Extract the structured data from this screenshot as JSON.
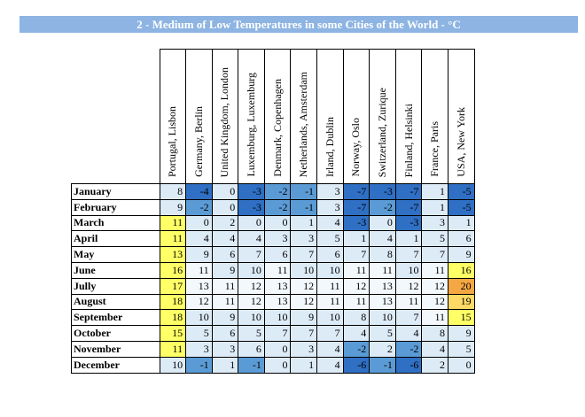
{
  "title": "2 - Medium of Low Temperatures in some Cities of the World - °C",
  "table": {
    "columns": [
      "Portugal, Lisbon",
      "Germany, Berlin",
      "United Kingdom, London",
      "Luxemburg, Luxemburg",
      "Denmark, Copenhagen",
      "Netherlands, Amsterdam",
      "Irland, Dublin",
      "Norway, Oslo",
      "Switzerland, Zurique",
      "Finland, Helsinki",
      "France, Paris",
      "USA, New York"
    ],
    "rows": [
      {
        "label": "January",
        "values": [
          8,
          -4,
          0,
          -3,
          -2,
          -1,
          3,
          -7,
          -3,
          -7,
          1,
          -5
        ],
        "colors": [
          "#ddebf7",
          "#2f6fc4",
          "#ddebf7",
          "#2f6fc4",
          "#5b9bd5",
          "#5b9bd5",
          "#ddebf7",
          "#2f6fc4",
          "#2f6fc4",
          "#2f6fc4",
          "#ddebf7",
          "#2f6fc4"
        ]
      },
      {
        "label": "February",
        "values": [
          9,
          -2,
          0,
          -3,
          -2,
          -1,
          3,
          -7,
          -2,
          -7,
          1,
          -5
        ],
        "colors": [
          "#ddebf7",
          "#5b9bd5",
          "#ddebf7",
          "#2f6fc4",
          "#5b9bd5",
          "#5b9bd5",
          "#ddebf7",
          "#2f6fc4",
          "#5b9bd5",
          "#2f6fc4",
          "#ddebf7",
          "#2f6fc4"
        ]
      },
      {
        "label": "March",
        "values": [
          11,
          0,
          2,
          0,
          0,
          1,
          4,
          -3,
          0,
          -3,
          3,
          1
        ],
        "colors": [
          "#ffff66",
          "#ddebf7",
          "#ddebf7",
          "#ddebf7",
          "#ddebf7",
          "#ddebf7",
          "#ddebf7",
          "#2f6fc4",
          "#ddebf7",
          "#2f6fc4",
          "#ddebf7",
          "#ddebf7"
        ]
      },
      {
        "label": "April",
        "values": [
          11,
          4,
          4,
          4,
          3,
          3,
          5,
          1,
          4,
          1,
          5,
          6
        ],
        "colors": [
          "#ffff66",
          "#ddebf7",
          "#ddebf7",
          "#ddebf7",
          "#ddebf7",
          "#ddebf7",
          "#ddebf7",
          "#ddebf7",
          "#ddebf7",
          "#ddebf7",
          "#ddebf7",
          "#ddebf7"
        ]
      },
      {
        "label": "May",
        "values": [
          13,
          9,
          6,
          7,
          6,
          7,
          6,
          7,
          8,
          7,
          7,
          9
        ],
        "colors": [
          "#ffff66",
          "#ddebf7",
          "#ddebf7",
          "#ddebf7",
          "#ddebf7",
          "#ddebf7",
          "#ddebf7",
          "#ddebf7",
          "#ddebf7",
          "#ddebf7",
          "#ddebf7",
          "#ddebf7"
        ]
      },
      {
        "label": "June",
        "values": [
          16,
          11,
          9,
          10,
          11,
          10,
          10,
          11,
          11,
          10,
          11,
          16
        ],
        "colors": [
          "#ffff66",
          "#f3f8fd",
          "#ddebf7",
          "#ddebf7",
          "#f3f8fd",
          "#ddebf7",
          "#ddebf7",
          "#f3f8fd",
          "#f3f8fd",
          "#ddebf7",
          "#f3f8fd",
          "#ffff66"
        ]
      },
      {
        "label": "Jully",
        "values": [
          17,
          13,
          11,
          12,
          13,
          12,
          11,
          12,
          13,
          12,
          12,
          20
        ],
        "colors": [
          "#ffff66",
          "#f3f8fd",
          "#f3f8fd",
          "#f3f8fd",
          "#f3f8fd",
          "#f3f8fd",
          "#f3f8fd",
          "#f3f8fd",
          "#f3f8fd",
          "#f3f8fd",
          "#f3f8fd",
          "#f4a742"
        ]
      },
      {
        "label": "August",
        "values": [
          18,
          12,
          11,
          12,
          13,
          12,
          11,
          11,
          13,
          11,
          12,
          19
        ],
        "colors": [
          "#ffff66",
          "#f3f8fd",
          "#f3f8fd",
          "#f3f8fd",
          "#f3f8fd",
          "#f3f8fd",
          "#f3f8fd",
          "#f3f8fd",
          "#f3f8fd",
          "#f3f8fd",
          "#f3f8fd",
          "#ffd966"
        ]
      },
      {
        "label": "September",
        "values": [
          18,
          10,
          9,
          10,
          10,
          9,
          10,
          8,
          10,
          7,
          11,
          15
        ],
        "colors": [
          "#ffff66",
          "#ddebf7",
          "#ddebf7",
          "#ddebf7",
          "#ddebf7",
          "#ddebf7",
          "#ddebf7",
          "#ddebf7",
          "#ddebf7",
          "#ddebf7",
          "#f3f8fd",
          "#ffff66"
        ]
      },
      {
        "label": "October",
        "values": [
          15,
          5,
          6,
          5,
          7,
          7,
          7,
          4,
          5,
          4,
          8,
          9
        ],
        "colors": [
          "#ffff66",
          "#ddebf7",
          "#ddebf7",
          "#ddebf7",
          "#ddebf7",
          "#ddebf7",
          "#ddebf7",
          "#ddebf7",
          "#ddebf7",
          "#ddebf7",
          "#ddebf7",
          "#ddebf7"
        ]
      },
      {
        "label": "November",
        "values": [
          11,
          3,
          3,
          6,
          0,
          3,
          4,
          -2,
          2,
          -2,
          4,
          5
        ],
        "colors": [
          "#ffff66",
          "#ddebf7",
          "#ddebf7",
          "#ddebf7",
          "#ddebf7",
          "#ddebf7",
          "#ddebf7",
          "#5b9bd5",
          "#ddebf7",
          "#5b9bd5",
          "#ddebf7",
          "#ddebf7"
        ]
      },
      {
        "label": "December",
        "values": [
          10,
          -1,
          1,
          -1,
          0,
          1,
          4,
          -6,
          -1,
          -6,
          2,
          0
        ],
        "colors": [
          "#ddebf7",
          "#5b9bd5",
          "#ddebf7",
          "#5b9bd5",
          "#ddebf7",
          "#ddebf7",
          "#ddebf7",
          "#2f6fc4",
          "#5b9bd5",
          "#2f6fc4",
          "#ddebf7",
          "#ddebf7"
        ]
      }
    ]
  }
}
